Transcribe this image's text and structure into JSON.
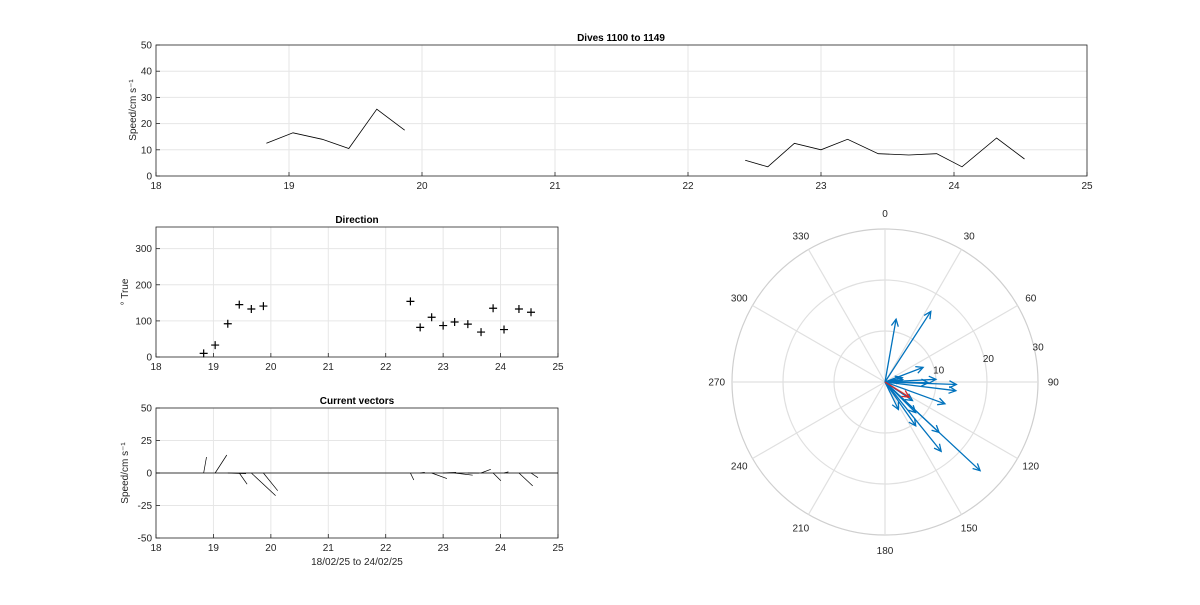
{
  "chart_data": [
    {
      "type": "line",
      "title": "Dives 1100 to 1149",
      "ylabel": "Speed/cm s⁻¹",
      "xlim": [
        18,
        25
      ],
      "ylim": [
        0,
        50
      ],
      "x_ticks": [
        18,
        19,
        20,
        21,
        22,
        23,
        24,
        25
      ],
      "y_ticks": [
        0,
        10,
        20,
        30,
        40,
        50
      ],
      "grid": true,
      "series": [
        {
          "x": [
            18.83,
            19.03,
            19.25,
            19.45,
            19.66,
            19.87
          ],
          "y": [
            12.5,
            16.5,
            14,
            10.5,
            25.5,
            17.5
          ]
        },
        {
          "x": [
            22.43,
            22.6,
            22.8,
            23.0,
            23.2,
            23.43,
            23.66,
            23.87,
            24.06,
            24.32,
            24.53
          ],
          "y": [
            6,
            3.5,
            12.5,
            10,
            14,
            8.5,
            8,
            8.5,
            3.5,
            14.5,
            6.5
          ]
        }
      ]
    },
    {
      "type": "scatter",
      "title": "Direction",
      "ylabel": "° True",
      "xlim": [
        18,
        25
      ],
      "ylim": [
        0,
        360
      ],
      "x_ticks": [
        18,
        19,
        20,
        21,
        22,
        23,
        24,
        25
      ],
      "y_ticks": [
        0,
        100,
        200,
        300
      ],
      "grid": true,
      "marker": "+",
      "points": [
        [
          18.83,
          10
        ],
        [
          19.03,
          33
        ],
        [
          19.25,
          92
        ],
        [
          19.45,
          145
        ],
        [
          19.66,
          133
        ],
        [
          19.87,
          141
        ],
        [
          22.43,
          154
        ],
        [
          22.6,
          82
        ],
        [
          22.8,
          110
        ],
        [
          23.0,
          87
        ],
        [
          23.2,
          97
        ],
        [
          23.43,
          91
        ],
        [
          23.66,
          69
        ],
        [
          23.87,
          135
        ],
        [
          24.06,
          76
        ],
        [
          24.32,
          133
        ],
        [
          24.53,
          124
        ]
      ]
    },
    {
      "type": "line",
      "title": "Current vectors",
      "ylabel": "Speed/cm s⁻¹",
      "xlabel": "18/02/25 to 24/02/25",
      "xlim": [
        18,
        25
      ],
      "ylim": [
        -50,
        50
      ],
      "x_ticks": [
        18,
        19,
        20,
        21,
        22,
        23,
        24,
        25
      ],
      "y_ticks": [
        -50,
        -25,
        0,
        25,
        50
      ],
      "grid": true,
      "baseline": 0,
      "stick_series": "speed and direction from panels 1 and 2, at the same dive times"
    },
    {
      "type": "polar",
      "angle_ticks": [
        0,
        30,
        60,
        90,
        120,
        150,
        180,
        210,
        240,
        270,
        300,
        330
      ],
      "radial_ticks": [
        10,
        20,
        30
      ],
      "rlim": [
        0,
        30
      ],
      "theta_zero": "top",
      "theta_direction": "clockwise",
      "arrows_color": "#0072bd",
      "mean_arrow_color": "#d62728",
      "mean_vector": {
        "direction": 122,
        "speed": 5.6
      }
    }
  ]
}
